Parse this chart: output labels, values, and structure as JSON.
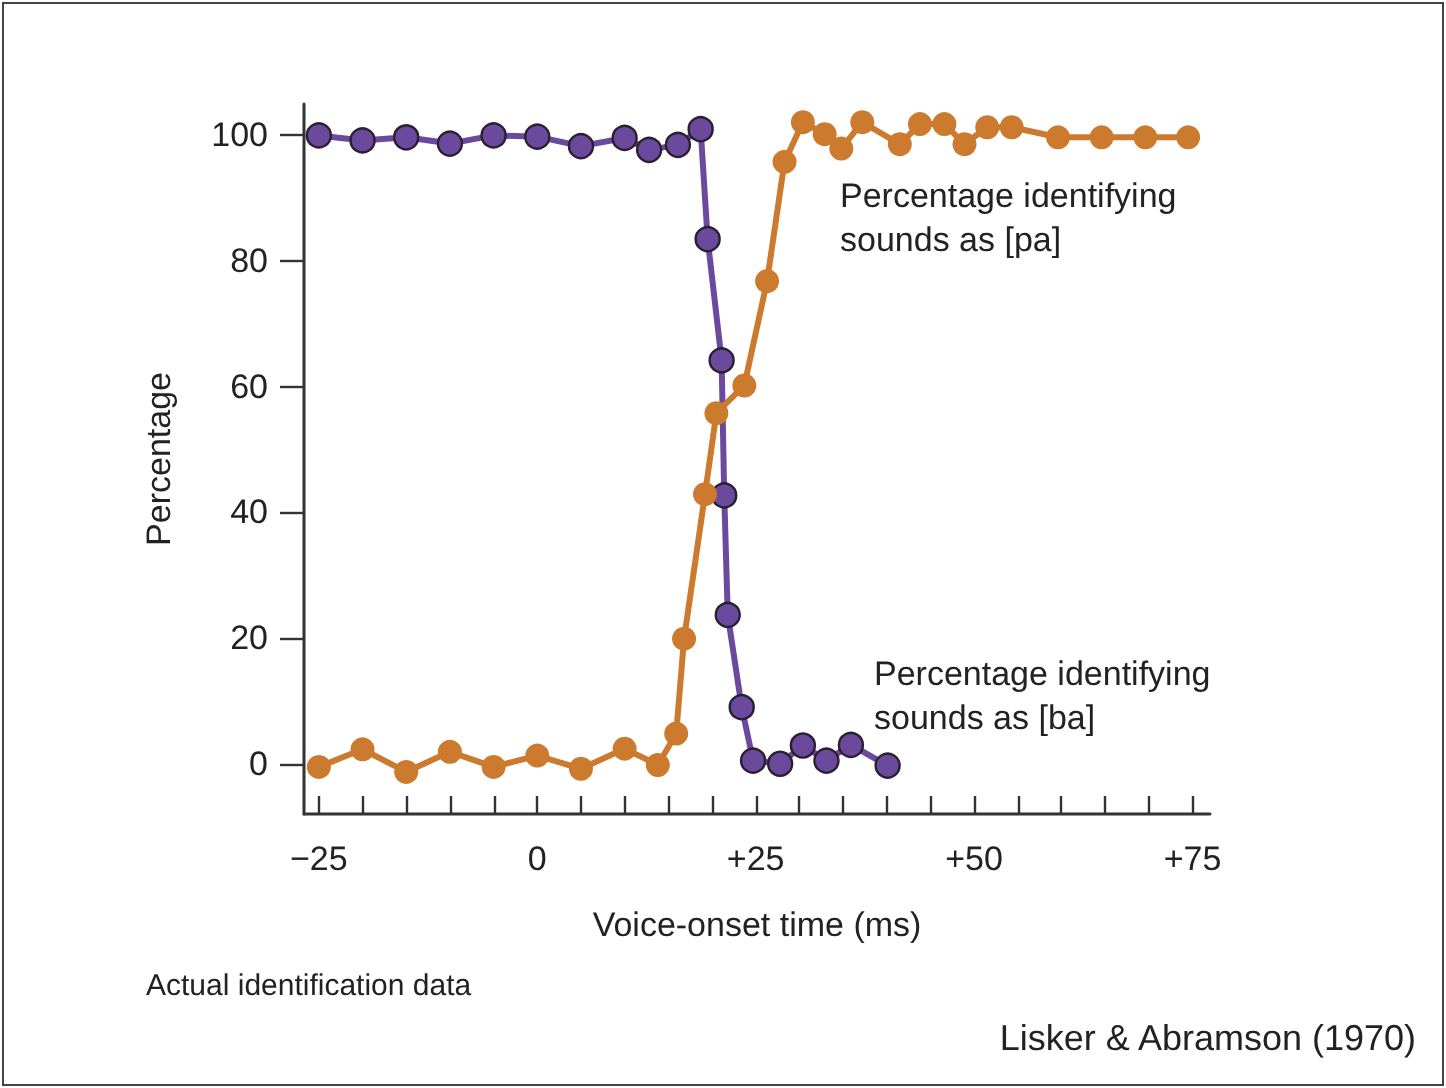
{
  "chart_data": {
    "type": "line",
    "xlabel": "Voice-onset time (ms)",
    "ylabel": "Percentage",
    "series": [
      {
        "color": "#6b4a9e",
        "x": [
          -25,
          -20,
          -15,
          -10,
          -5,
          0,
          5,
          10,
          12.8,
          16.1,
          18.7,
          19.5,
          21.1,
          21.4,
          21.8,
          23.4,
          24.7,
          27.8,
          30.4,
          33.1,
          35.9,
          40.1
        ],
        "values": [
          100,
          99.2,
          99.7,
          98.7,
          100,
          99.8,
          98.3,
          99.6,
          97.7,
          98.5,
          101,
          83.5,
          64.2,
          42.7,
          23.7,
          9,
          0.5,
          0,
          2.9,
          0.5,
          3,
          -0.3
        ]
      },
      {
        "color": "#cc7a2e",
        "x": [
          -25,
          -20,
          -15,
          -10,
          -5,
          0,
          5,
          10,
          13.8,
          15.9,
          16.8,
          19.2,
          20.5,
          23.7,
          26.3,
          28.3,
          30.4,
          32.9,
          34.8,
          37.2,
          41.5,
          43.8,
          46.6,
          48.9,
          51.5,
          54.3,
          59.6,
          64.6,
          69.6,
          74.5
        ],
        "values": [
          -0.5,
          2.3,
          -1.3,
          1.9,
          -0.5,
          1.3,
          -0.8,
          2.4,
          -0.2,
          4.8,
          19.9,
          42.9,
          55.8,
          60.2,
          76.8,
          95.8,
          102.1,
          100.2,
          97.9,
          102.1,
          98.6,
          101.8,
          101.8,
          98.6,
          101.3,
          101.3,
          99.7,
          99.7,
          99.7,
          99.7
        ]
      }
    ],
    "xlim": [
      -26.7,
      77
    ],
    "xticks": [
      {
        "value": -25,
        "label": "−25"
      },
      {
        "value": -20,
        "label": null
      },
      {
        "value": -15,
        "label": null
      },
      {
        "value": -10,
        "label": null
      },
      {
        "value": -5,
        "label": null
      },
      {
        "value": 0,
        "label": "0"
      },
      {
        "value": 5,
        "label": null
      },
      {
        "value": 10,
        "label": null
      },
      {
        "value": 15,
        "label": null
      },
      {
        "value": 20,
        "label": null
      },
      {
        "value": 25,
        "label": "+25"
      },
      {
        "value": 30,
        "label": null
      },
      {
        "value": 35,
        "label": null
      },
      {
        "value": 40,
        "label": null
      },
      {
        "value": 45,
        "label": null
      },
      {
        "value": 50,
        "label": "+50"
      },
      {
        "value": 55,
        "label": null
      },
      {
        "value": 60,
        "label": null
      },
      {
        "value": 65,
        "label": null
      },
      {
        "value": 70,
        "label": null
      },
      {
        "value": 75,
        "label": "+75"
      }
    ],
    "ylim": [
      -8,
      105
    ],
    "yticks": [
      0,
      20,
      40,
      60,
      80,
      100
    ],
    "marker": "circle",
    "line_style": "solid",
    "annotations": [
      "Percentage identifying sounds as [pa]",
      "Percentage identifying sounds as [ba]",
      "Actual identification data",
      "Lisker & Abramson (1970)"
    ]
  }
}
